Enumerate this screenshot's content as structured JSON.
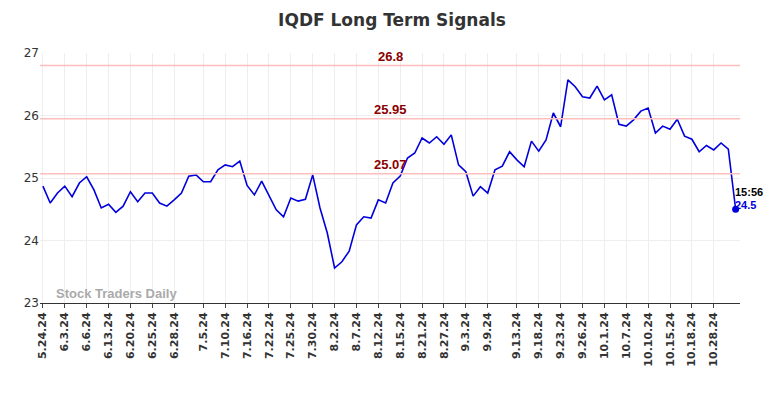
{
  "chart_data": {
    "type": "line",
    "title": "IQDF Long Term Signals",
    "categories": [
      "5.24.24",
      null,
      null,
      "6.3.24",
      null,
      null,
      "6.6.24",
      null,
      null,
      "6.13.24",
      null,
      null,
      "6.20.24",
      null,
      null,
      "6.25.24",
      null,
      null,
      "6.28.24",
      null,
      null,
      null,
      "7.5.24",
      null,
      null,
      "7.10.24",
      null,
      null,
      "7.16.24",
      null,
      null,
      "7.22.24",
      null,
      null,
      "7.25.24",
      null,
      null,
      "7.30.24",
      null,
      null,
      "8.2.24",
      null,
      null,
      "8.7.24",
      null,
      null,
      "8.12.24",
      null,
      null,
      "8.15.24",
      null,
      null,
      "8.21.24",
      null,
      null,
      "8.27.24",
      null,
      null,
      "9.3.24",
      null,
      null,
      "9.9.24",
      null,
      null,
      null,
      "9.13.24",
      null,
      null,
      "9.18.24",
      null,
      null,
      "9.23.24",
      null,
      null,
      "9.26.24",
      null,
      null,
      "10.1.24",
      null,
      null,
      "10.7.24",
      null,
      null,
      "10.10.24",
      null,
      null,
      "10.15.24",
      null,
      null,
      "10.18.24",
      null,
      null,
      "10.28.24",
      null,
      null,
      null
    ],
    "values": [
      24.87,
      24.6,
      24.76,
      24.87,
      24.7,
      24.92,
      25.02,
      24.81,
      24.52,
      24.58,
      24.45,
      24.55,
      24.78,
      24.62,
      24.76,
      24.76,
      24.6,
      24.55,
      24.65,
      24.76,
      25.03,
      25.05,
      24.94,
      24.94,
      25.13,
      25.21,
      25.18,
      25.27,
      24.88,
      24.73,
      24.95,
      24.73,
      24.49,
      24.38,
      24.68,
      24.63,
      24.66,
      25.05,
      24.52,
      24.12,
      23.56,
      23.66,
      23.83,
      24.25,
      24.38,
      24.36,
      24.65,
      24.6,
      24.92,
      25.03,
      25.32,
      25.4,
      25.64,
      25.56,
      25.66,
      25.54,
      25.69,
      25.21,
      25.1,
      24.71,
      24.86,
      24.76,
      25.13,
      25.19,
      25.42,
      25.29,
      25.18,
      25.59,
      25.43,
      25.61,
      26.04,
      25.82,
      26.57,
      26.46,
      26.3,
      26.28,
      26.47,
      26.25,
      26.33,
      25.86,
      25.83,
      25.93,
      26.07,
      26.12,
      25.72,
      25.83,
      25.78,
      25.94,
      25.67,
      25.62,
      25.42,
      25.52,
      25.45,
      25.56,
      25.46,
      24.5
    ],
    "color": "#0000dd",
    "reference_lines": [
      26.8,
      25.95,
      25.07
    ],
    "last_time": "15:56",
    "watermark": "Stock Traders Daily",
    "ylim": [
      23,
      27
    ],
    "yticks": [
      23,
      24,
      25,
      26,
      27
    ],
    "grid": true
  }
}
